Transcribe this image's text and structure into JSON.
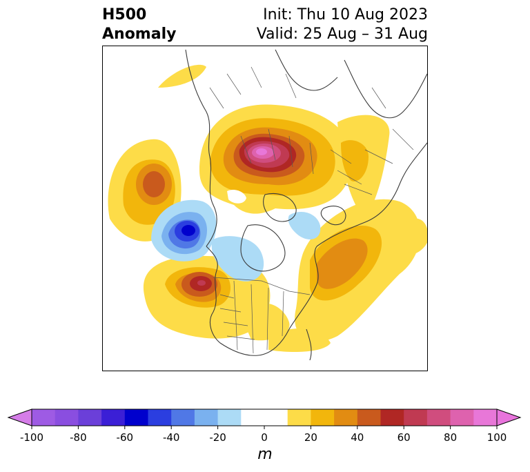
{
  "title": {
    "left_line1": "H500",
    "left_line2": "Anomaly",
    "right_line1": "Init: Thu 10 Aug 2023",
    "right_line2": "Valid: 25 Aug – 31 Aug"
  },
  "colorbar": {
    "unit": "m",
    "extend": "both",
    "ticks": [
      {
        "value": -100,
        "label": "-100"
      },
      {
        "value": -80,
        "label": "-80"
      },
      {
        "value": -60,
        "label": "-60"
      },
      {
        "value": -40,
        "label": "-40"
      },
      {
        "value": -20,
        "label": "-20"
      },
      {
        "value": 0,
        "label": "0"
      },
      {
        "value": 20,
        "label": "20"
      },
      {
        "value": 40,
        "label": "40"
      },
      {
        "value": 60,
        "label": "60"
      },
      {
        "value": 80,
        "label": "80"
      },
      {
        "value": 100,
        "label": "100"
      }
    ],
    "bins": [
      {
        "from": -100,
        "to": -90,
        "color": "#9e5be4"
      },
      {
        "from": -90,
        "to": -80,
        "color": "#8a4ee0"
      },
      {
        "from": -80,
        "to": -70,
        "color": "#6b3fd9"
      },
      {
        "from": -70,
        "to": -60,
        "color": "#3b1fd6"
      },
      {
        "from": -60,
        "to": -50,
        "color": "#0000cd"
      },
      {
        "from": -50,
        "to": -40,
        "color": "#2b3ee0"
      },
      {
        "from": -40,
        "to": -30,
        "color": "#5078e6"
      },
      {
        "from": -30,
        "to": -20,
        "color": "#7ab1ef"
      },
      {
        "from": -20,
        "to": -10,
        "color": "#acdbf6"
      },
      {
        "from": -10,
        "to": 10,
        "color": "#ffffff"
      },
      {
        "from": 10,
        "to": 20,
        "color": "#fddc48"
      },
      {
        "from": 20,
        "to": 30,
        "color": "#f2b60c"
      },
      {
        "from": 30,
        "to": 40,
        "color": "#e28c12"
      },
      {
        "from": 40,
        "to": 50,
        "color": "#c95a1d"
      },
      {
        "from": 50,
        "to": 60,
        "color": "#b02724"
      },
      {
        "from": 60,
        "to": 70,
        "color": "#c03a52"
      },
      {
        "from": 70,
        "to": 80,
        "color": "#d04d7e"
      },
      {
        "from": 80,
        "to": 90,
        "color": "#de62ae"
      },
      {
        "from": 90,
        "to": 100,
        "color": "#e877d8"
      }
    ],
    "under_color": "#d57de8",
    "over_color": "#e874dc"
  },
  "map": {
    "projection": "north-polar-stereographic",
    "anomalies": [
      {
        "region": "north-pacific-gulf-of-alaska",
        "sign": "positive",
        "peak": 40
      },
      {
        "region": "pacific-northwest-offshore",
        "sign": "negative",
        "peak": -60
      },
      {
        "region": "western-united-states",
        "sign": "positive",
        "peak": 60
      },
      {
        "region": "northern-siberia-arctic",
        "sign": "positive",
        "peak": 90
      },
      {
        "region": "north-atlantic-greenland",
        "sign": "positive",
        "peak": 40
      },
      {
        "region": "eastern-north-america",
        "sign": "positive",
        "peak": 20
      },
      {
        "region": "canadian-arctic",
        "sign": "negative",
        "peak": -20
      }
    ]
  }
}
